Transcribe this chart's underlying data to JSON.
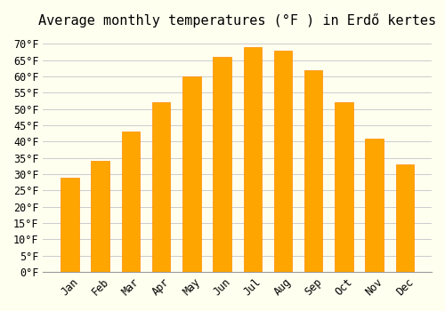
{
  "title": "Average monthly temperatures (°F ) in Erdő kertes",
  "months": [
    "Jan",
    "Feb",
    "Mar",
    "Apr",
    "May",
    "Jun",
    "Jul",
    "Aug",
    "Sep",
    "Oct",
    "Nov",
    "Dec"
  ],
  "values": [
    29,
    34,
    43,
    52,
    60,
    66,
    69,
    68,
    62,
    52,
    41,
    33
  ],
  "bar_color": "#FFA500",
  "bar_edge_color": "#FF8C00",
  "background_color": "#FFFFF0",
  "grid_color": "#CCCCCC",
  "ylim": [
    0,
    72
  ],
  "yticks": [
    0,
    5,
    10,
    15,
    20,
    25,
    30,
    35,
    40,
    45,
    50,
    55,
    60,
    65,
    70
  ],
  "title_fontsize": 11,
  "tick_fontsize": 8.5,
  "font_family": "monospace"
}
